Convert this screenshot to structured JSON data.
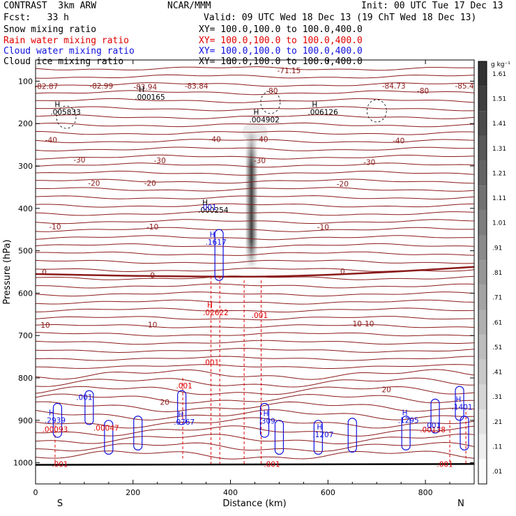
{
  "header": {
    "line1_left": "CONTRAST  3km ARW",
    "line1_center": "NCAR/MMM",
    "line1_right": "Init: 00 UTC Tue 17 Dec 13",
    "line2_left": "Fcst:   33 h",
    "line2_right": "Valid: 09 UTC Wed 18 Dec 13 (19 ChT Wed 18 Dec 13)",
    "fields": [
      {
        "name": "Snow mixing ratio",
        "xy": "XY= 100.0,100.0 to 100.0,400.0",
        "color": "#000000"
      },
      {
        "name": "Rain water mixing ratio",
        "xy": "XY= 100.0,100.0 to 100.0,400.0",
        "color": "#e00000"
      },
      {
        "name": "Cloud water mixing ratio",
        "xy": "XY= 100.0,100.0 to 100.0,400.0",
        "color": "#1010e0"
      },
      {
        "name": "Cloud ice mixing ratio",
        "xy": "XY= 100.0,100.0 to 100.0,400.0",
        "color": "#000000"
      }
    ]
  },
  "chart_data": {
    "type": "cross-section",
    "xlabel": "Distance (km)",
    "ylabel": "Pressure (hPa)",
    "xlim": [
      0,
      900
    ],
    "ylim": [
      1050,
      50
    ],
    "x_ticks": [
      0,
      200,
      400,
      600,
      800
    ],
    "y_ticks": [
      100,
      200,
      300,
      400,
      500,
      600,
      700,
      800,
      900,
      1000
    ],
    "end_labels": {
      "left": "S",
      "right": "N"
    },
    "colorbar": {
      "unit": "g kg⁻¹",
      "levels": [
        ".01",
        ".11",
        ".21",
        ".31",
        ".41",
        ".51",
        ".61",
        ".71",
        ".81",
        ".91",
        "1.01",
        "1.11",
        "1.21",
        "1.31",
        "1.41",
        "1.51",
        "1.61"
      ]
    },
    "colors": {
      "temperature": "#8b1a1a",
      "rain": "#e00000",
      "cloud_water": "#1010e0",
      "ice": "#000000"
    },
    "temperature_contour_labels": [
      {
        "text": "-71.15",
        "x": 520,
        "y": 75
      },
      {
        "text": "-82.87",
        "x": 22,
        "y": 112
      },
      {
        "text": "-82.99",
        "x": 135,
        "y": 111
      },
      {
        "text": "-83.94",
        "x": 225,
        "y": 113
      },
      {
        "text": "-83.84",
        "x": 330,
        "y": 111
      },
      {
        "text": "-84.73",
        "x": 735,
        "y": 111
      },
      {
        "text": "-85.4",
        "x": 880,
        "y": 111
      },
      {
        "text": "-80",
        "x": 485,
        "y": 122
      },
      {
        "text": "-80",
        "x": 795,
        "y": 122
      },
      {
        "text": "-40",
        "x": 32,
        "y": 238
      },
      {
        "text": "-40",
        "x": 368,
        "y": 237
      },
      {
        "text": "-40",
        "x": 465,
        "y": 237
      },
      {
        "text": "-40",
        "x": 745,
        "y": 240
      },
      {
        "text": "-30",
        "x": 90,
        "y": 285
      },
      {
        "text": "-30",
        "x": 255,
        "y": 287
      },
      {
        "text": "-30",
        "x": 460,
        "y": 287
      },
      {
        "text": "-30",
        "x": 685,
        "y": 291
      },
      {
        "text": "-20",
        "x": 120,
        "y": 340
      },
      {
        "text": "-20",
        "x": 235,
        "y": 340
      },
      {
        "text": "-20",
        "x": 630,
        "y": 342
      },
      {
        "text": "-10",
        "x": 40,
        "y": 443
      },
      {
        "text": "-10",
        "x": 240,
        "y": 443
      },
      {
        "text": "-10",
        "x": 590,
        "y": 444
      },
      {
        "text": "0",
        "x": 18,
        "y": 550
      },
      {
        "text": "0",
        "x": 240,
        "y": 557
      },
      {
        "text": "0",
        "x": 630,
        "y": 548
      },
      {
        "text": "10",
        "x": 20,
        "y": 675
      },
      {
        "text": "10",
        "x": 240,
        "y": 674
      },
      {
        "text": "10",
        "x": 660,
        "y": 672
      },
      {
        "text": "10",
        "x": 685,
        "y": 672
      },
      {
        "text": "20",
        "x": 265,
        "y": 857
      },
      {
        "text": "20",
        "x": 720,
        "y": 827
      }
    ],
    "hi_markers": [
      {
        "label": "H",
        "value": ".000165",
        "x": 215,
        "y": 129,
        "color": "#000000"
      },
      {
        "label": "H",
        "value": ".005833",
        "x": 42,
        "y": 164,
        "color": "#000000"
      },
      {
        "label": "H",
        "value": ".004902",
        "x": 450,
        "y": 182,
        "color": "#000000"
      },
      {
        "label": "H",
        "value": ".006126",
        "x": 570,
        "y": 164,
        "color": "#000000"
      },
      {
        "label": "H",
        "value": ".000254",
        "x": 345,
        "y": 395,
        "color": "#000000"
      },
      {
        "label": "H",
        "value": ".1617",
        "x": 360,
        "y": 471,
        "color": "#1010e0"
      },
      {
        "label": "H",
        "value": ".02622",
        "x": 355,
        "y": 637,
        "color": "#e00000"
      },
      {
        "label": "H",
        "value": ".2939",
        "x": 30,
        "y": 891,
        "color": "#1010e0"
      },
      {
        "label": "H",
        "value": ".0767",
        "x": 295,
        "y": 895,
        "color": "#1010e0"
      },
      {
        "label": "H",
        "value": ".309",
        "x": 470,
        "y": 893,
        "color": "#1010e0"
      },
      {
        "label": "H",
        "value": ".1207",
        "x": 580,
        "y": 925,
        "color": "#1010e0"
      },
      {
        "label": "H",
        "value": ".1295",
        "x": 755,
        "y": 891,
        "color": "#1010e0"
      },
      {
        "label": "H",
        "value": ".1401",
        "x": 865,
        "y": 860,
        "color": "#1010e0"
      }
    ],
    "contour_value_labels": [
      {
        "text": ".001",
        "x": 355,
        "y": 397,
        "color": "#1010e0"
      },
      {
        "text": ".001",
        "x": 100,
        "y": 845,
        "color": "#1010e0"
      },
      {
        "text": ".001",
        "x": 460,
        "y": 652,
        "color": "#e00000"
      },
      {
        "text": ".001",
        "x": 360,
        "y": 763,
        "color": "#e00000"
      },
      {
        "text": ".001",
        "x": 305,
        "y": 818,
        "color": "#e00000"
      },
      {
        "text": ".00093",
        "x": 40,
        "y": 921,
        "color": "#e00000"
      },
      {
        "text": ".00047",
        "x": 145,
        "y": 918,
        "color": "#e00000"
      },
      {
        "text": ".00138",
        "x": 815,
        "y": 922,
        "color": "#e00000"
      },
      {
        "text": ".001",
        "x": 50,
        "y": 1003,
        "color": "#e00000"
      },
      {
        "text": ".001",
        "x": 485,
        "y": 1003,
        "color": "#e00000"
      },
      {
        "text": ".001",
        "x": 840,
        "y": 1003,
        "color": "#e00000"
      },
      {
        "text": ".001",
        "x": 815,
        "y": 912,
        "color": "#1010e0"
      }
    ]
  }
}
